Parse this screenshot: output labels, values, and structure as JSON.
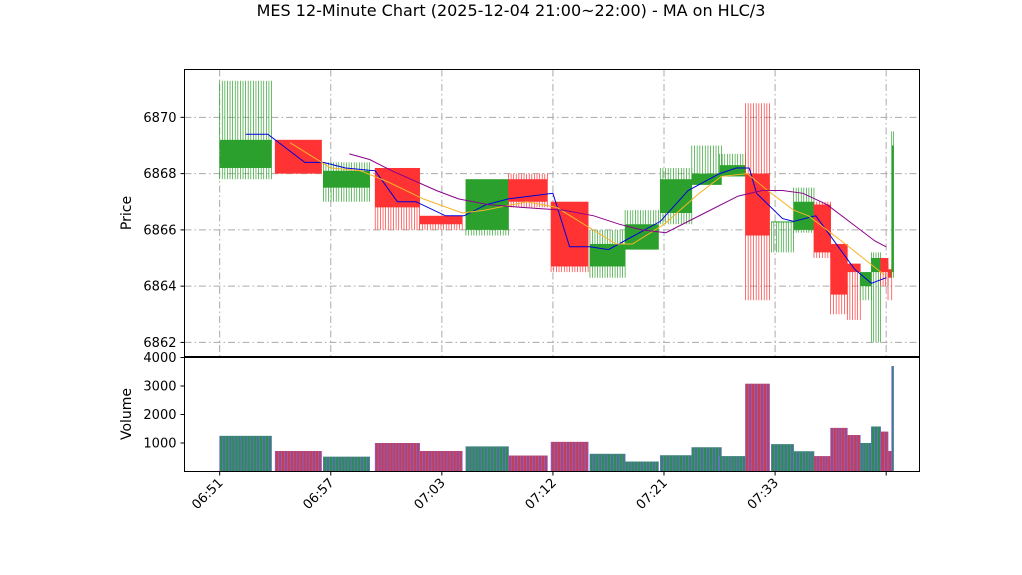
{
  "chart_data": {
    "type": "candlestick",
    "title": "MES 12-Minute Chart (2025-12-04 21:00~22:00) - MA on HLC/3",
    "price_panel": {
      "ylabel": "Price",
      "ylim": [
        6861.5,
        6871.7
      ],
      "yticks": [
        6862,
        6864,
        6866,
        6868,
        6870
      ],
      "grid": true
    },
    "volume_panel": {
      "ylabel": "Volume",
      "ylim": [
        0,
        4000
      ],
      "yticks": [
        1000,
        2000,
        3000,
        4000
      ],
      "grid": false
    },
    "x_axis": {
      "ticks": [
        {
          "x": 0,
          "label": "06:51"
        },
        {
          "x": 6,
          "label": "06:57"
        },
        {
          "x": 12,
          "label": "07:03"
        },
        {
          "x": 18,
          "label": "07:12"
        },
        {
          "x": 24,
          "label": "07:21"
        },
        {
          "x": 30,
          "label": "07:33"
        },
        {
          "x": 36,
          "label": ""
        }
      ],
      "xlim": [
        -1.9,
        37.8
      ]
    },
    "colors": {
      "up": "#2ca02c",
      "down": "#ff3333",
      "ma_fast": "#0000dd",
      "ma_mid": "#f5b428",
      "ma_slow": "#8b008b",
      "vol_stripe": "#7b68ee",
      "vol_up": "#2e8b57",
      "vol_down": "#c0405a",
      "grid": "#aaaaaa"
    },
    "candles": [
      {
        "x": 0.0,
        "w": 2.8,
        "open": 6868.2,
        "high": 6871.3,
        "low": 6867.8,
        "close": 6869.2,
        "volume": 1250
      },
      {
        "x": 3.0,
        "w": 2.5,
        "open": 6869.2,
        "high": 6869.2,
        "low": 6868.0,
        "close": 6868.0,
        "volume": 720
      },
      {
        "x": 5.6,
        "w": 2.5,
        "open": 6867.5,
        "high": 6868.4,
        "low": 6867.0,
        "close": 6868.1,
        "volume": 520
      },
      {
        "x": 8.4,
        "w": 2.4,
        "open": 6868.2,
        "high": 6868.2,
        "low": 6866.0,
        "close": 6866.8,
        "volume": 1000
      },
      {
        "x": 10.8,
        "w": 2.3,
        "open": 6866.5,
        "high": 6866.5,
        "low": 6866.0,
        "close": 6866.2,
        "volume": 720
      },
      {
        "x": 13.3,
        "w": 2.3,
        "open": 6866.0,
        "high": 6867.8,
        "low": 6865.8,
        "close": 6867.8,
        "volume": 880
      },
      {
        "x": 15.6,
        "w": 2.1,
        "open": 6867.8,
        "high": 6868.0,
        "low": 6866.8,
        "close": 6867.0,
        "volume": 560
      },
      {
        "x": 17.9,
        "w": 2.0,
        "open": 6867.0,
        "high": 6867.0,
        "low": 6864.5,
        "close": 6864.7,
        "volume": 1040
      },
      {
        "x": 20.0,
        "w": 1.9,
        "open": 6864.7,
        "high": 6866.0,
        "low": 6864.3,
        "close": 6865.5,
        "volume": 620
      },
      {
        "x": 21.9,
        "w": 1.8,
        "open": 6865.3,
        "high": 6866.7,
        "low": 6865.3,
        "close": 6866.2,
        "volume": 350
      },
      {
        "x": 23.8,
        "w": 1.7,
        "open": 6866.6,
        "high": 6868.2,
        "low": 6866.2,
        "close": 6867.8,
        "volume": 570
      },
      {
        "x": 25.5,
        "w": 1.6,
        "open": 6867.6,
        "high": 6869.0,
        "low": 6867.6,
        "close": 6868.0,
        "volume": 850
      },
      {
        "x": 27.0,
        "w": 1.4,
        "open": 6867.9,
        "high": 6868.7,
        "low": 6867.9,
        "close": 6868.3,
        "volume": 540
      },
      {
        "x": 28.4,
        "w": 1.3,
        "open": 6868.0,
        "high": 6870.5,
        "low": 6863.5,
        "close": 6865.8,
        "volume": 3080
      },
      {
        "x": 29.8,
        "w": 1.2,
        "open": 6866.3,
        "high": 6866.3,
        "low": 6865.2,
        "close": 6866.3,
        "volume": 960
      },
      {
        "x": 31.0,
        "w": 1.1,
        "open": 6866.0,
        "high": 6867.5,
        "low": 6865.9,
        "close": 6867.0,
        "volume": 710
      },
      {
        "x": 32.1,
        "w": 0.9,
        "open": 6866.9,
        "high": 6867.0,
        "low": 6865.0,
        "close": 6865.2,
        "volume": 540
      },
      {
        "x": 33.0,
        "w": 0.9,
        "open": 6865.5,
        "high": 6865.5,
        "low": 6863.0,
        "close": 6863.7,
        "volume": 1530
      },
      {
        "x": 33.9,
        "w": 0.7,
        "open": 6864.8,
        "high": 6864.8,
        "low": 6862.8,
        "close": 6864.5,
        "volume": 1280
      },
      {
        "x": 34.6,
        "w": 0.6,
        "open": 6864.0,
        "high": 6864.5,
        "low": 6863.5,
        "close": 6864.5,
        "volume": 1000
      },
      {
        "x": 35.2,
        "w": 0.5,
        "open": 6864.5,
        "high": 6865.2,
        "low": 6862.0,
        "close": 6865.0,
        "volume": 1580
      },
      {
        "x": 35.7,
        "w": 0.4,
        "open": 6865.0,
        "high": 6865.0,
        "low": 6864.0,
        "close": 6864.5,
        "volume": 1400
      },
      {
        "x": 36.1,
        "w": 0.2,
        "open": 6864.6,
        "high": 6864.8,
        "low": 6863.5,
        "close": 6864.3,
        "volume": 720
      },
      {
        "x": 36.3,
        "w": 0.1,
        "open": 6864.5,
        "high": 6869.5,
        "low": 6864.3,
        "close": 6869.0,
        "volume": 3700
      }
    ],
    "ma_lines": [
      {
        "color_key": "ma_fast",
        "points": [
          [
            1.4,
            6869.4
          ],
          [
            2.6,
            6869.4
          ],
          [
            4.6,
            6868.4
          ],
          [
            5.6,
            6868.4
          ],
          [
            6.8,
            6868.2
          ],
          [
            8.4,
            6868.1
          ],
          [
            9.6,
            6867.0
          ],
          [
            10.6,
            6867.0
          ],
          [
            12.2,
            6866.5
          ],
          [
            13.2,
            6866.5
          ],
          [
            14.4,
            6866.9
          ],
          [
            15.6,
            6867.1
          ],
          [
            18.0,
            6867.3
          ],
          [
            18.9,
            6865.4
          ],
          [
            20.0,
            6865.4
          ],
          [
            21.0,
            6865.3
          ],
          [
            23.8,
            6866.3
          ],
          [
            25.3,
            6867.4
          ],
          [
            27.0,
            6868.0
          ],
          [
            27.9,
            6868.2
          ],
          [
            28.6,
            6868.2
          ],
          [
            29.0,
            6867.3
          ],
          [
            30.4,
            6866.4
          ],
          [
            31.0,
            6866.3
          ],
          [
            32.2,
            6866.5
          ],
          [
            34.3,
            6864.6
          ],
          [
            35.2,
            6864.1
          ],
          [
            36.0,
            6864.3
          ]
        ]
      },
      {
        "color_key": "ma_mid",
        "points": [
          [
            3.8,
            6869.1
          ],
          [
            6.0,
            6868.2
          ],
          [
            7.6,
            6868.1
          ],
          [
            9.1,
            6867.7
          ],
          [
            11.0,
            6867.1
          ],
          [
            13.1,
            6866.6
          ],
          [
            14.3,
            6866.7
          ],
          [
            16.6,
            6867.0
          ],
          [
            18.2,
            6866.8
          ],
          [
            21.4,
            6865.5
          ],
          [
            22.3,
            6865.5
          ],
          [
            24.0,
            6866.2
          ],
          [
            25.9,
            6867.3
          ],
          [
            27.1,
            6867.9
          ],
          [
            28.5,
            6868.0
          ],
          [
            29.6,
            6867.4
          ],
          [
            31.0,
            6866.7
          ],
          [
            31.8,
            6866.5
          ],
          [
            33.8,
            6865.5
          ],
          [
            35.9,
            6864.4
          ]
        ]
      },
      {
        "color_key": "ma_slow",
        "points": [
          [
            7.0,
            6868.7
          ],
          [
            8.1,
            6868.5
          ],
          [
            9.3,
            6868.1
          ],
          [
            11.7,
            6867.4
          ],
          [
            12.9,
            6867.1
          ],
          [
            14.5,
            6866.9
          ],
          [
            16.3,
            6866.8
          ],
          [
            18.6,
            6866.7
          ],
          [
            20.2,
            6866.5
          ],
          [
            21.6,
            6866.2
          ],
          [
            22.8,
            6866.0
          ],
          [
            24.1,
            6865.9
          ],
          [
            26.2,
            6866.6
          ],
          [
            28.0,
            6867.2
          ],
          [
            29.3,
            6867.4
          ],
          [
            30.4,
            6867.4
          ],
          [
            31.5,
            6867.3
          ],
          [
            32.8,
            6866.9
          ],
          [
            34.0,
            6866.3
          ],
          [
            35.4,
            6865.6
          ],
          [
            36.0,
            6865.4
          ]
        ]
      }
    ]
  }
}
